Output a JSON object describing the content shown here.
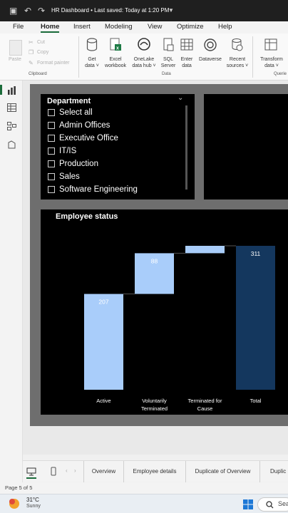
{
  "window": {
    "title": "HR Dashboard • Last saved: Today at 1:20 PM"
  },
  "menu": {
    "tabs": [
      "File",
      "Home",
      "Insert",
      "Modeling",
      "View",
      "Optimize",
      "Help"
    ],
    "active": "Home"
  },
  "ribbon": {
    "clipboard": {
      "paste": "Paste",
      "cut": "Cut",
      "copy": "Copy",
      "format_painter": "Format painter",
      "group": "Clipboard"
    },
    "data": {
      "get_data": [
        "Get",
        "data ˅"
      ],
      "excel": [
        "Excel",
        "workbook"
      ],
      "onelake": [
        "OneLake",
        "data hub ˅"
      ],
      "sql": [
        "SQL",
        "Server"
      ],
      "enter": [
        "Enter",
        "data"
      ],
      "dataverse": [
        "Dataverse"
      ],
      "recent": [
        "Recent",
        "sources ˅"
      ],
      "group": "Data"
    },
    "queries": {
      "transform": [
        "Transform",
        "data ˅"
      ],
      "group": "Querie"
    }
  },
  "slicer": {
    "title": "Department",
    "items": [
      "Select all",
      "Admin Offices",
      "Executive Office",
      "IT/IS",
      "Production",
      "Sales",
      "Software Engineering"
    ]
  },
  "chart_data": {
    "type": "waterfall",
    "title": "Employee status",
    "categories": [
      "Active",
      "Voluntarily Terminated",
      "Terminated for Cause",
      "Total"
    ],
    "values": [
      207,
      88,
      16,
      311
    ],
    "data_labels": [
      "207",
      "88",
      "",
      "311"
    ],
    "colors": {
      "increase": "#a9cdfa",
      "total": "#14375e"
    }
  },
  "page_tabs": [
    "Overview",
    "Employee details",
    "Duplicate of Overview",
    "Duplic"
  ],
  "status": {
    "page": "Page 5 of 5"
  },
  "taskbar": {
    "temp": "31°C",
    "desc": "Sunny",
    "search": "Sea"
  }
}
